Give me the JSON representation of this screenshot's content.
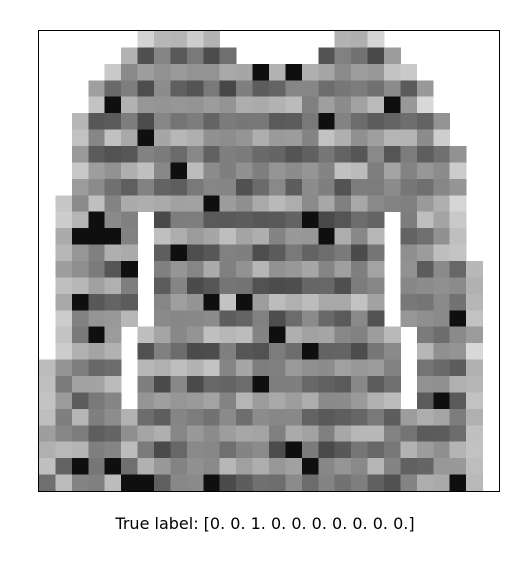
{
  "image": {
    "subject": "grayscale 28x28 pullover / sweater with horizontal stripes",
    "grid_cols": 28,
    "grid_rows": 28,
    "colormap": "gray_r",
    "colors": {
      "frame": "#000000",
      "background": "#ffffff"
    }
  },
  "caption": {
    "text": "True label: [0. 0. 1. 0. 0. 0. 0. 0. 0. 0.]"
  }
}
